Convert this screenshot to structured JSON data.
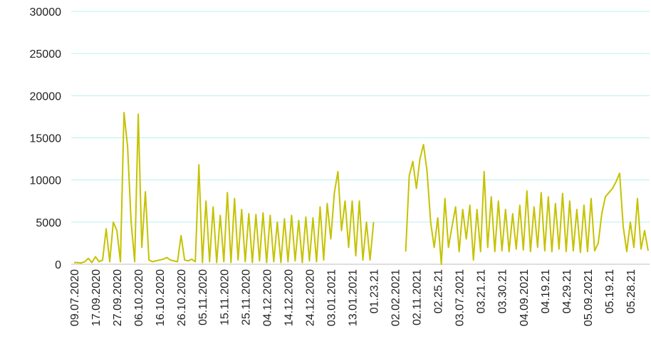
{
  "chart_data": {
    "type": "line",
    "categories": [
      "09.07.2020",
      null,
      null,
      null,
      null,
      null,
      "17.09.2020",
      null,
      null,
      null,
      null,
      null,
      "27.09.2020",
      null,
      null,
      null,
      null,
      null,
      "06.10.2020",
      null,
      null,
      null,
      null,
      null,
      "16.10.2020",
      null,
      null,
      null,
      null,
      null,
      "26.10.2020",
      null,
      null,
      null,
      null,
      null,
      "05.11.2020",
      null,
      null,
      null,
      null,
      null,
      "15.11.2020",
      null,
      null,
      null,
      null,
      null,
      "25.11.2020",
      null,
      null,
      null,
      null,
      null,
      "04.12.2020",
      null,
      null,
      null,
      null,
      null,
      "14.12.2020",
      null,
      null,
      null,
      null,
      null,
      "24.12.2020",
      null,
      null,
      null,
      null,
      null,
      "03.01.2021",
      null,
      null,
      null,
      null,
      null,
      "13.01.2021",
      null,
      null,
      null,
      null,
      null,
      "01.23.21",
      null,
      null,
      null,
      null,
      null,
      "02.02.2021",
      null,
      null,
      null,
      null,
      null,
      "02.11.2021",
      null,
      null,
      null,
      null,
      null,
      "02.25.21",
      null,
      null,
      null,
      null,
      null,
      "03.07.2021",
      null,
      null,
      null,
      null,
      null,
      "03.21.21",
      null,
      null,
      null,
      null,
      null,
      "03.30.21",
      null,
      null,
      null,
      null,
      null,
      "04.09.2021",
      null,
      null,
      null,
      null,
      null,
      "04.19.21",
      null,
      null,
      null,
      null,
      null,
      "04.29.21",
      null,
      null,
      null,
      null,
      null,
      "05.09.2021",
      null,
      null,
      null,
      null,
      null,
      "05.19.21",
      null,
      null,
      null,
      null,
      null,
      "05.28.21",
      null,
      null,
      null,
      null,
      null
    ],
    "series": [
      {
        "color": "#c6c200",
        "values": [
          200,
          200,
          150,
          300,
          700,
          200,
          900,
          300,
          500,
          4200,
          300,
          5000,
          4000,
          300,
          18000,
          14000,
          5000,
          300,
          17800,
          2000,
          8600,
          500,
          300,
          400,
          500,
          600,
          800,
          500,
          400,
          300,
          3400,
          500,
          400,
          600,
          300,
          11800,
          200,
          7500,
          300,
          6800,
          200,
          5800,
          300,
          8500,
          200,
          7800,
          500,
          6500,
          300,
          6000,
          200,
          5900,
          400,
          6100,
          200,
          5800,
          300,
          5000,
          200,
          5400,
          300,
          5800,
          400,
          5200,
          200,
          5600,
          400,
          5500,
          300,
          6800,
          500,
          7200,
          3000,
          8500,
          11000,
          4000,
          7500,
          2000,
          7500,
          1000,
          7500,
          500,
          5000,
          500,
          5000,
          null,
          null,
          null,
          null,
          null,
          null,
          null,
          null,
          1500,
          10500,
          12200,
          9000,
          12500,
          14200,
          11000,
          5000,
          2000,
          5500,
          0,
          7800,
          2000,
          4500,
          6800,
          1500,
          6500,
          3000,
          7000,
          500,
          6500,
          1500,
          11000,
          2000,
          8000,
          1500,
          7500,
          1600,
          6500,
          1500,
          6000,
          1800,
          7000,
          1700,
          8700,
          1500,
          6800,
          2000,
          8500,
          1600,
          8000,
          1500,
          7200,
          1800,
          8400,
          1500,
          7500,
          1600,
          6500,
          1400,
          7000,
          1500,
          7800,
          1600,
          2500,
          6000,
          8000,
          8500,
          9000,
          9800,
          10800,
          4500,
          1500,
          5000,
          2000,
          7800,
          1800,
          4000,
          1600
        ]
      }
    ],
    "ylim": [
      0,
      30000
    ],
    "yticks": [
      0,
      5000,
      10000,
      15000,
      20000,
      25000,
      30000
    ],
    "grid": true
  }
}
